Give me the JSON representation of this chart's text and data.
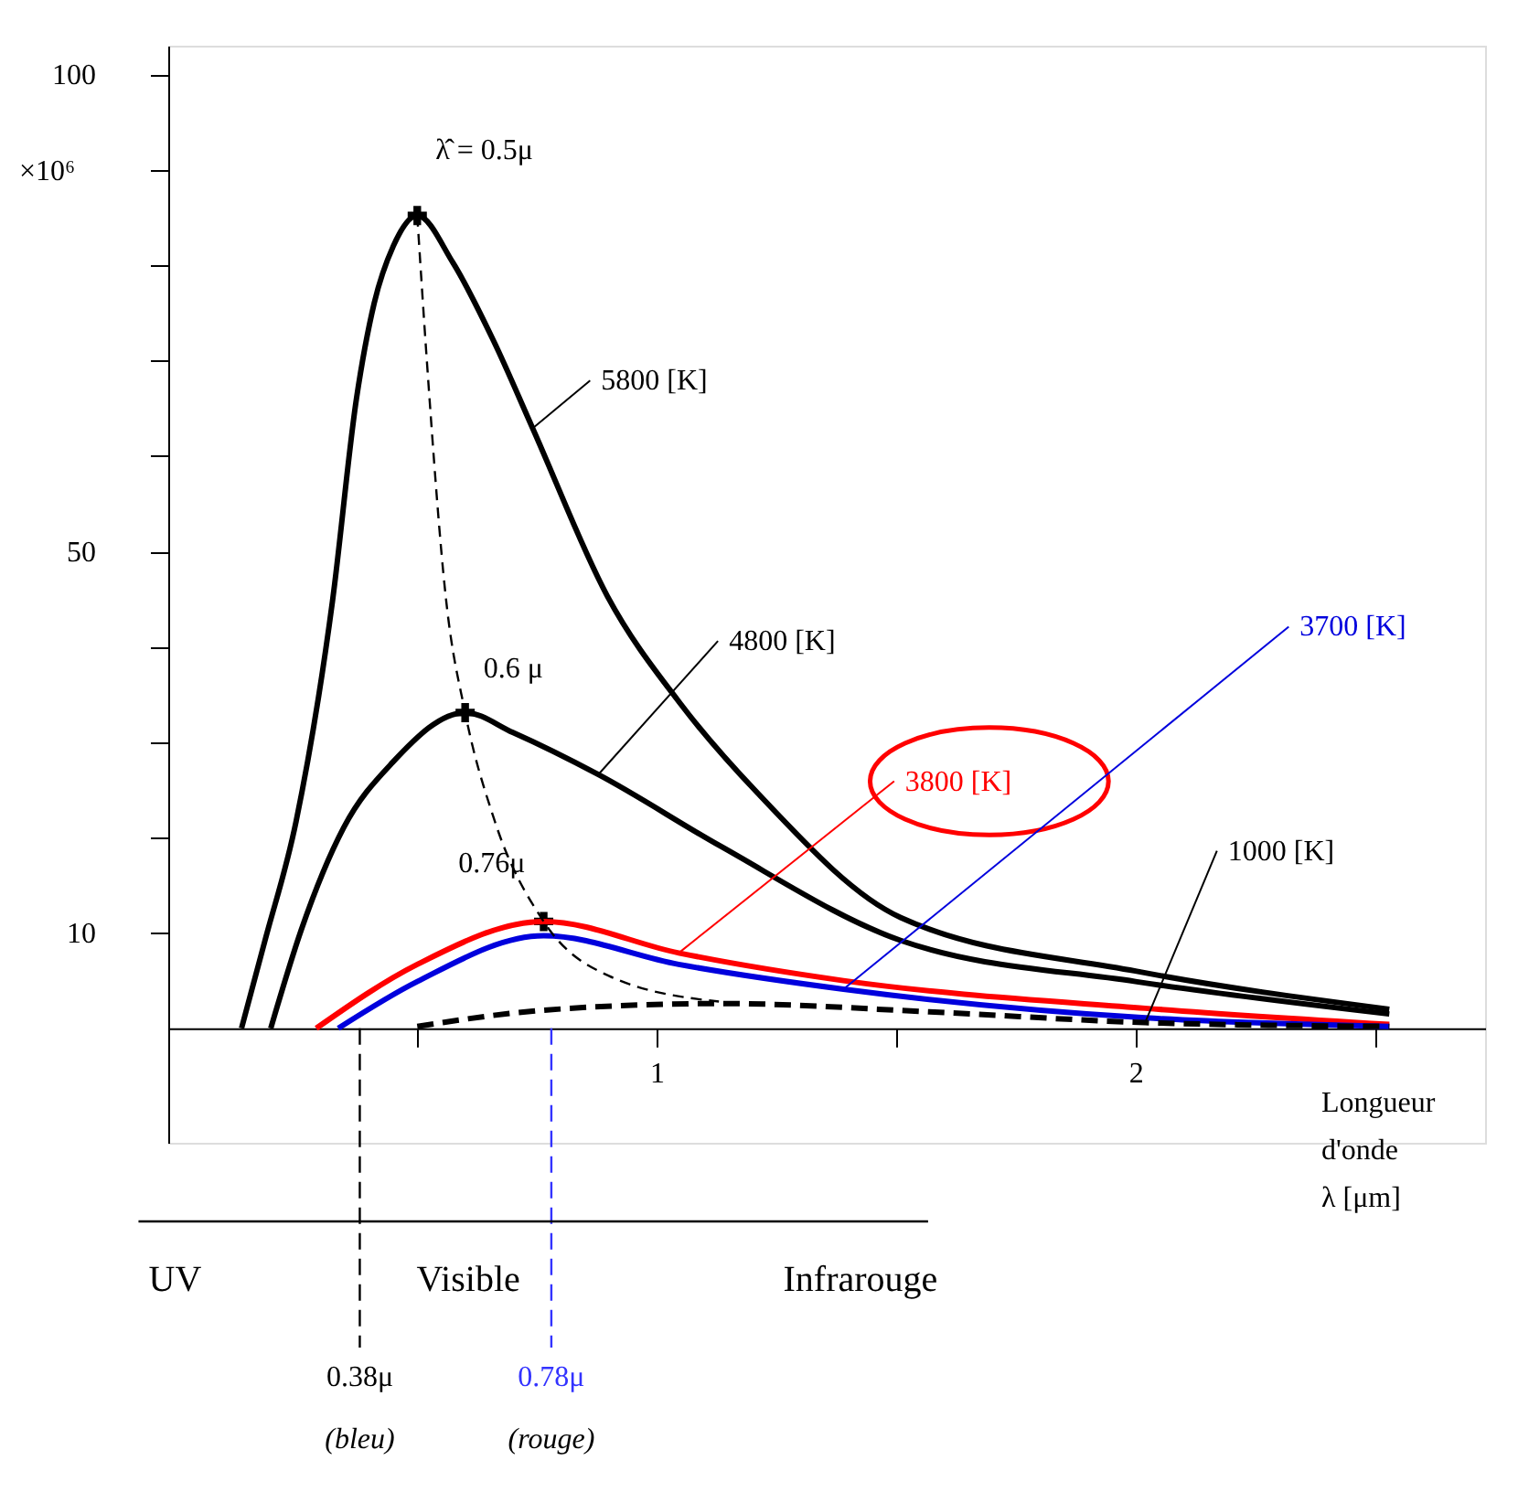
{
  "chart_data": {
    "type": "line",
    "xlabel": "Longueur\nd'onde\nλ  [μm]",
    "ylabel": "×10⁶",
    "xlim": [
      -0.02,
      2.73
    ],
    "ylim": [
      -12,
      103
    ],
    "xticks": [
      {
        "value": 0.5,
        "label": null
      },
      1,
      {
        "value": 1.5,
        "label": null
      },
      2,
      {
        "value": 2.5,
        "label": null
      }
    ],
    "yticks": [
      10,
      {
        "value": 20,
        "label": null
      },
      {
        "value": 30,
        "label": null
      },
      {
        "value": 40,
        "label": null
      },
      50,
      {
        "value": 60,
        "label": null
      },
      {
        "value": 70,
        "label": null
      },
      {
        "value": 80,
        "label": null
      },
      {
        "value": 90,
        "label": null
      },
      100
    ],
    "grid": false,
    "series": [
      {
        "name": "5800 [K]",
        "color": "#000000",
        "x": [
          0.133,
          0.182,
          0.247,
          0.323,
          0.373,
          0.41,
          0.45,
          0.5,
          0.574,
          0.66,
          0.741,
          0.897,
          1.05,
          1.21,
          1.51,
          2.0,
          2.53
        ],
        "values": [
          0,
          9.2,
          21.7,
          44.8,
          66,
          76,
          82,
          85.2,
          80.3,
          72,
          62.9,
          45.3,
          34,
          24.7,
          11.6,
          6.0,
          2.0
        ]
      },
      {
        "name": "4800 [K]",
        "color": "#000000",
        "x": [
          0.194,
          0.259,
          0.346,
          0.449,
          0.6,
          0.7,
          0.878,
          1.133,
          1.51,
          2.0,
          2.53
        ],
        "values": [
          0,
          10.5,
          21,
          27.9,
          33.1,
          31,
          26.6,
          19.1,
          9.2,
          4.9,
          1.5
        ]
      },
      {
        "name": "3800 [K]",
        "color": "#ff0000",
        "x": [
          0.289,
          0.5,
          0.764,
          1.046,
          1.39,
          2.02,
          2.53
        ],
        "values": [
          0,
          6.7,
          11.2,
          7.9,
          5.0,
          2.1,
          0.4
        ]
      },
      {
        "name": "3700 [K]",
        "color": "#0000dd",
        "x": [
          0.335,
          0.5,
          0.764,
          1.046,
          1.39,
          2.02,
          2.53
        ],
        "values": [
          0,
          4.9,
          9.7,
          6.7,
          4.1,
          1.1,
          0.2
        ]
      },
      {
        "name": "1000 [K]",
        "color": "#000000",
        "line_style": "dashed",
        "x": [
          0.5,
          0.764,
          1.133,
          1.58,
          2.02,
          2.53
        ],
        "values": [
          0.2,
          1.9,
          2.6,
          1.7,
          0.6,
          0.2
        ]
      },
      {
        "color": "#000000",
        "line_style": "dashed",
        "x": [
          0.5,
          0.52,
          0.56,
          0.6,
          0.66,
          0.764,
          0.9,
          1.13
        ],
        "values": [
          85.2,
          70,
          45,
          33.1,
          22,
          11.2,
          5.5,
          2.8
        ]
      },
      {
        "type": "scatter",
        "marker": "cross",
        "color": "#000000",
        "x": [
          0.5,
          0.6,
          0.764
        ],
        "values": [
          85.2,
          33.1,
          11.2
        ]
      }
    ],
    "annotations": [
      {
        "text": "λ̂ = 0.5μ",
        "x": 0.5,
        "y": 85.2
      },
      {
        "text": "0.6 μ",
        "x": 0.6,
        "y": 33.1
      },
      {
        "text": "0.76μ",
        "x": 0.764,
        "y": 11.2
      },
      "UV",
      "Visible",
      "Infrarouge"
    ],
    "ref_lines": [
      {
        "axis": "x",
        "value": 0.38,
        "label": "0.38μ\n(bleu)",
        "color": "#000000",
        "line_style": "dashed"
      },
      {
        "axis": "x",
        "value": 0.78,
        "label": "0.78μ\n(rouge)",
        "color": "#3333ff",
        "line_style": "dashed"
      }
    ]
  }
}
